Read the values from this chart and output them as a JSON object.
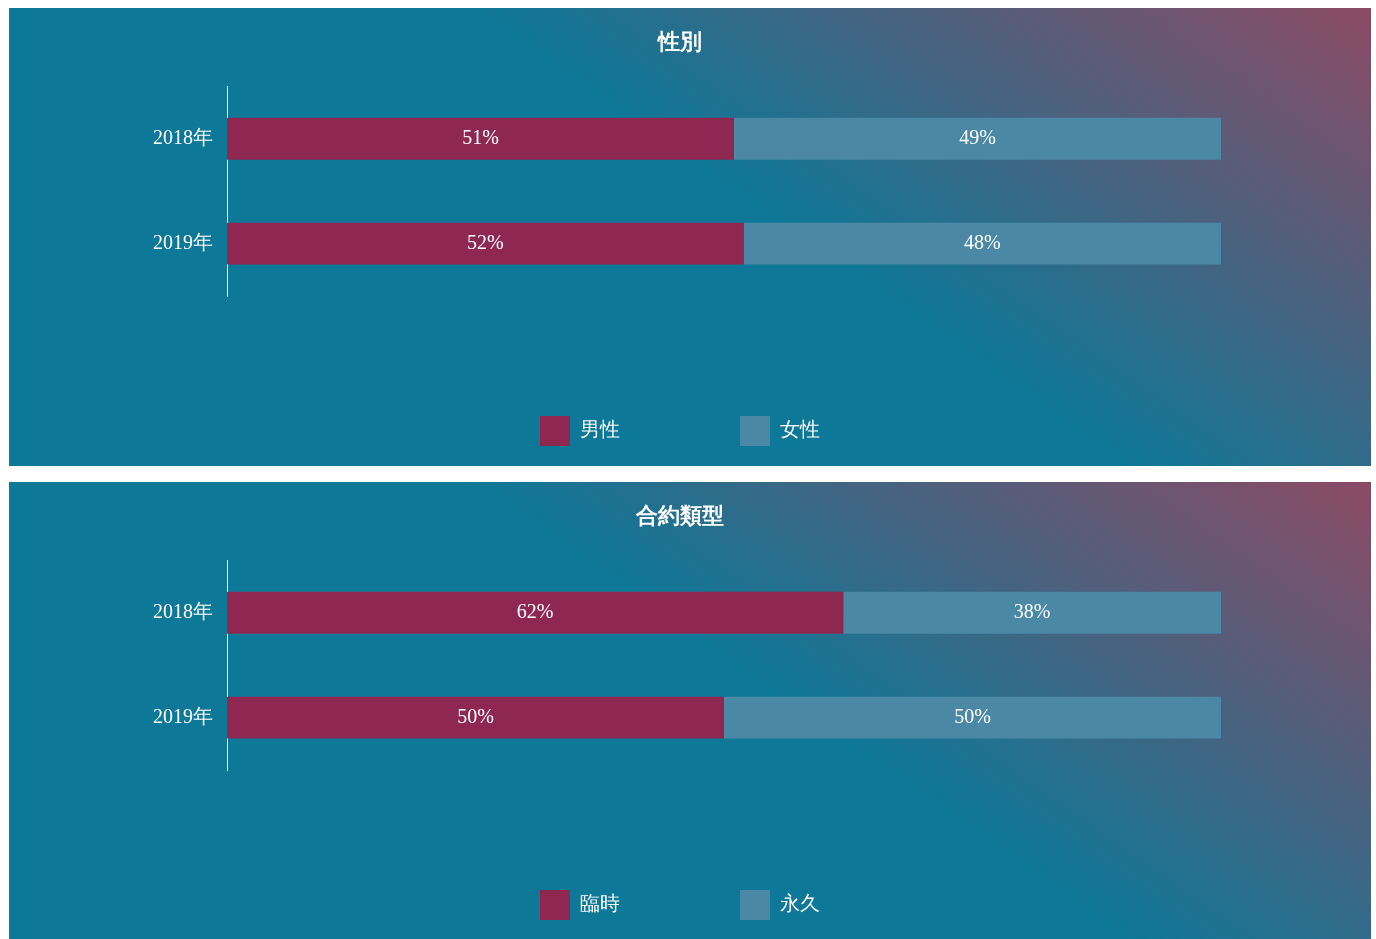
{
  "chart_data": [
    {
      "type": "bar",
      "title": "性別",
      "orientation": "horizontal",
      "stacked": true,
      "legend": "bottom",
      "categories": [
        "2018年",
        "2019年"
      ],
      "series": [
        {
          "name": "男性",
          "color": "#8e2850",
          "values": [
            51,
            52
          ],
          "value_labels": [
            "51%",
            "52%"
          ]
        },
        {
          "name": "女性",
          "color": "#4a88a6",
          "values": [
            49,
            48
          ],
          "value_labels": [
            "49%",
            "48%"
          ]
        }
      ]
    },
    {
      "type": "bar",
      "title": "合約類型",
      "orientation": "horizontal",
      "stacked": true,
      "legend": "bottom",
      "categories": [
        "2018年",
        "2019年"
      ],
      "series": [
        {
          "name": "臨時",
          "color": "#8e2850",
          "values": [
            62,
            50
          ],
          "value_labels": [
            "62%",
            "50%"
          ]
        },
        {
          "name": "永久",
          "color": "#4a88a6",
          "values": [
            38,
            50
          ],
          "value_labels": [
            "38%",
            "50%"
          ]
        }
      ]
    }
  ]
}
